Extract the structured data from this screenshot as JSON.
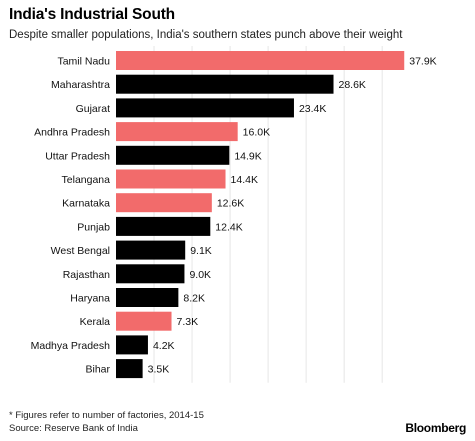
{
  "header": {
    "title": "India's Industrial South",
    "subtitle": "Despite smaller populations, India's southern states punch above their weight"
  },
  "footer": {
    "footnote": "* Figures refer to number of factories, 2014-15",
    "source": "Source: Reserve Bank of India",
    "brand": "Bloomberg"
  },
  "colors": {
    "highlight": "#f26b6b",
    "default": "#000000",
    "gridline": "#e6e6e6"
  },
  "chart_data": {
    "type": "bar",
    "orientation": "horizontal",
    "title": "India's Industrial South",
    "subtitle": "Despite smaller populations, India's southern states punch above their weight",
    "xlim": [
      0,
      38
    ],
    "grid": true,
    "unit": "K",
    "categories": [
      "Tamil Nadu",
      "Maharashtra",
      "Gujarat",
      "Andhra Pradesh",
      "Uttar Pradesh",
      "Telangana",
      "Karnataka",
      "Punjab",
      "West Bengal",
      "Rajasthan",
      "Haryana",
      "Kerala",
      "Madhya Pradesh",
      "Bihar"
    ],
    "values": [
      37.9,
      28.6,
      23.4,
      16.0,
      14.9,
      14.4,
      12.6,
      12.4,
      9.1,
      9.0,
      8.2,
      7.3,
      4.2,
      3.5
    ],
    "labels": [
      "37.9K",
      "28.6K",
      "23.4K",
      "16.0K",
      "14.9K",
      "14.4K",
      "12.6K",
      "12.4K",
      "9.1K",
      "9.0K",
      "8.2K",
      "7.3K",
      "4.2K",
      "3.5K"
    ],
    "highlighted": [
      true,
      false,
      false,
      true,
      false,
      true,
      true,
      false,
      false,
      false,
      false,
      true,
      false,
      false
    ]
  }
}
